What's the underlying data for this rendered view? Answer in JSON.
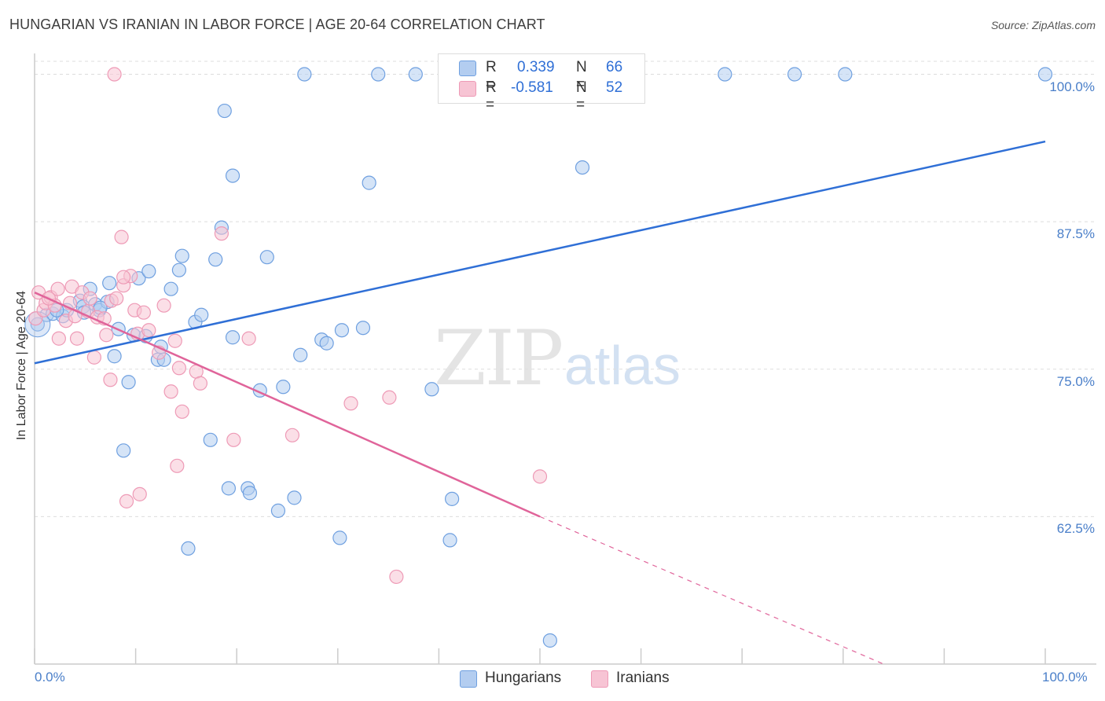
{
  "header": {
    "title": "HUNGARIAN VS IRANIAN IN LABOR FORCE | AGE 20-64 CORRELATION CHART",
    "source": "Source: ZipAtlas.com"
  },
  "watermark": {
    "zip": "ZIP",
    "atlas": "atlas"
  },
  "stats_box": {
    "rows": [
      {
        "r_label": "R =",
        "r_value": "0.339",
        "n_label": "N =",
        "n_value": "66",
        "color": "#6fa0e0"
      },
      {
        "r_label": "R =",
        "r_value": "-0.581",
        "n_label": "N =",
        "n_value": "52",
        "color": "#f0a3bd"
      }
    ]
  },
  "colors": {
    "hungarian_fill": "#b3cdf0",
    "hungarian_stroke": "#6fa0e0",
    "hungarian_line": "#2f6fd6",
    "iranian_fill": "#f7c4d4",
    "iranian_stroke": "#ee9ab6",
    "iranian_line": "#e0649a",
    "axis_text": "#4a7fc9",
    "grid": "#dddddd"
  },
  "chart_data": {
    "type": "scatter",
    "title": "HUNGARIAN VS IRANIAN IN LABOR FORCE | AGE 20-64 CORRELATION CHART",
    "xlabel": "",
    "ylabel": "In Labor Force | Age 20-64",
    "xlim": [
      0,
      100
    ],
    "ylim": [
      50,
      101.5
    ],
    "x_ticks_labels": [
      "0.0%",
      "100.0%"
    ],
    "y_ticks": [
      62.5,
      75.0,
      87.5,
      100.0
    ],
    "y_ticks_labels": [
      "62.5%",
      "75.0%",
      "87.5%",
      "100.0%"
    ],
    "grid": true,
    "legend_position": "bottom-center",
    "legend": [
      "Hungarians",
      "Iranians"
    ],
    "series": [
      {
        "name": "Hungarians",
        "r": 0.339,
        "n": 66,
        "trend": {
          "x": [
            0,
            100
          ],
          "y": [
            75.5,
            94.3
          ]
        },
        "points": [
          [
            0.3,
            78.8
          ],
          [
            1.2,
            79.6
          ],
          [
            1.8,
            79.7
          ],
          [
            2.8,
            79.5
          ],
          [
            3.2,
            80.0
          ],
          [
            4.5,
            80.8
          ],
          [
            4.8,
            80.3
          ],
          [
            5.5,
            81.8
          ],
          [
            6.0,
            80.5
          ],
          [
            6.4,
            80.0
          ],
          [
            7.2,
            80.7
          ],
          [
            7.4,
            82.3
          ],
          [
            7.9,
            76.1
          ],
          [
            8.3,
            78.4
          ],
          [
            8.8,
            68.1
          ],
          [
            9.3,
            73.9
          ],
          [
            9.8,
            77.9
          ],
          [
            10.3,
            82.7
          ],
          [
            11.3,
            83.3
          ],
          [
            11.0,
            77.8
          ],
          [
            12.2,
            75.8
          ],
          [
            12.5,
            76.9
          ],
          [
            12.8,
            75.8
          ],
          [
            13.5,
            81.8
          ],
          [
            14.3,
            83.4
          ],
          [
            14.6,
            84.6
          ],
          [
            15.2,
            59.8
          ],
          [
            15.9,
            79.0
          ],
          [
            16.5,
            79.6
          ],
          [
            17.4,
            69.0
          ],
          [
            17.9,
            84.3
          ],
          [
            18.5,
            87.0
          ],
          [
            18.8,
            96.9
          ],
          [
            19.2,
            64.9
          ],
          [
            19.6,
            91.4
          ],
          [
            19.6,
            77.7
          ],
          [
            21.1,
            64.9
          ],
          [
            21.3,
            64.5
          ],
          [
            22.3,
            73.2
          ],
          [
            23.0,
            84.5
          ],
          [
            24.1,
            63.0
          ],
          [
            24.6,
            73.5
          ],
          [
            25.7,
            64.1
          ],
          [
            26.3,
            76.2
          ],
          [
            26.7,
            100.0
          ],
          [
            28.4,
            77.5
          ],
          [
            28.9,
            77.2
          ],
          [
            30.2,
            60.7
          ],
          [
            30.4,
            78.3
          ],
          [
            33.1,
            90.8
          ],
          [
            32.5,
            78.5
          ],
          [
            34.0,
            100.0
          ],
          [
            37.7,
            100.0
          ],
          [
            39.3,
            73.3
          ],
          [
            41.1,
            60.5
          ],
          [
            41.3,
            64.0
          ],
          [
            51.0,
            52.0
          ],
          [
            54.2,
            92.1
          ],
          [
            57.0,
            100.0
          ],
          [
            68.3,
            100.0
          ],
          [
            75.2,
            100.0
          ],
          [
            80.2,
            100.0
          ],
          [
            100.0,
            100.0
          ],
          [
            4.9,
            79.8
          ],
          [
            2.2,
            80.0
          ],
          [
            6.5,
            80.2
          ]
        ]
      },
      {
        "name": "Iranians",
        "r": -0.581,
        "n": 52,
        "trend": {
          "x": [
            0,
            50
          ],
          "y": [
            81.5,
            62.5
          ]
        },
        "trend_dashed": {
          "x": [
            50,
            84
          ],
          "y": [
            62.5,
            50.0
          ]
        },
        "points": [
          [
            0.1,
            79.3
          ],
          [
            0.4,
            81.5
          ],
          [
            0.9,
            80.0
          ],
          [
            1.1,
            80.6
          ],
          [
            1.6,
            81.1
          ],
          [
            2.0,
            80.4
          ],
          [
            2.3,
            81.8
          ],
          [
            2.4,
            77.6
          ],
          [
            3.1,
            79.1
          ],
          [
            3.7,
            82.0
          ],
          [
            4.0,
            79.5
          ],
          [
            4.2,
            77.6
          ],
          [
            4.7,
            81.5
          ],
          [
            5.3,
            79.9
          ],
          [
            5.5,
            81.0
          ],
          [
            5.9,
            76.0
          ],
          [
            6.2,
            79.4
          ],
          [
            6.9,
            79.3
          ],
          [
            7.1,
            77.9
          ],
          [
            7.5,
            74.1
          ],
          [
            7.6,
            80.8
          ],
          [
            8.1,
            81.0
          ],
          [
            8.8,
            82.1
          ],
          [
            8.6,
            86.2
          ],
          [
            9.1,
            63.8
          ],
          [
            9.5,
            82.9
          ],
          [
            8.8,
            82.8
          ],
          [
            9.9,
            80.0
          ],
          [
            10.2,
            78.0
          ],
          [
            10.4,
            64.4
          ],
          [
            11.3,
            78.3
          ],
          [
            12.3,
            76.4
          ],
          [
            12.8,
            80.4
          ],
          [
            13.5,
            73.1
          ],
          [
            13.9,
            77.4
          ],
          [
            14.1,
            66.8
          ],
          [
            14.3,
            75.1
          ],
          [
            14.6,
            71.4
          ],
          [
            16.0,
            74.8
          ],
          [
            16.4,
            73.8
          ],
          [
            18.5,
            86.5
          ],
          [
            19.7,
            69.0
          ],
          [
            21.2,
            77.6
          ],
          [
            25.5,
            69.4
          ],
          [
            31.3,
            72.1
          ],
          [
            35.1,
            72.6
          ],
          [
            35.8,
            57.4
          ],
          [
            50.0,
            65.9
          ],
          [
            7.9,
            100.0
          ],
          [
            3.5,
            80.6
          ],
          [
            1.4,
            81.0
          ],
          [
            10.8,
            79.8
          ]
        ]
      }
    ]
  }
}
